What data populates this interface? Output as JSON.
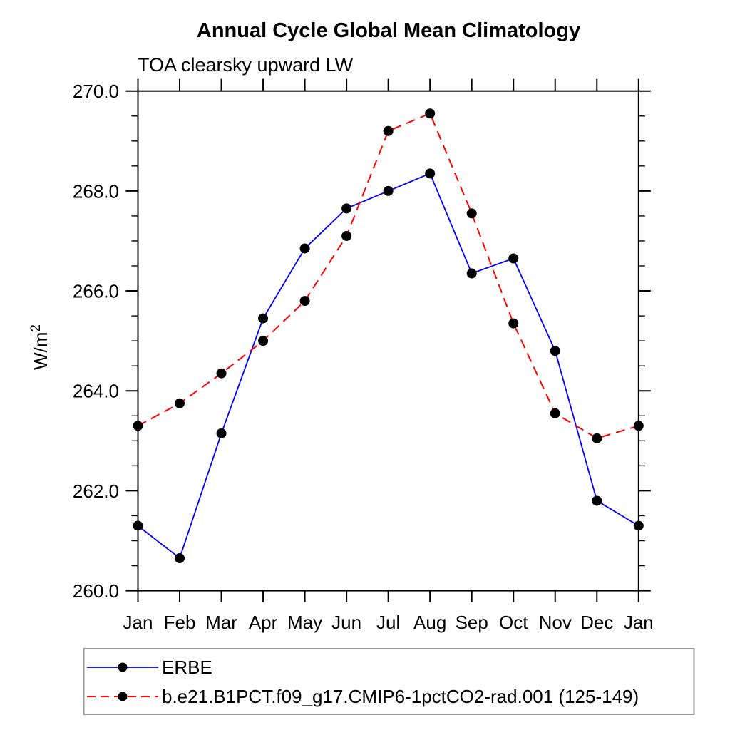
{
  "chart_data": {
    "type": "line",
    "title": "Annual Cycle Global Mean Climatology",
    "subtitle": "TOA clearsky upward LW",
    "xlabel": "",
    "ylabel": "W/m²",
    "ylabel_base": "W/m",
    "ylabel_exponent": "2",
    "x_tick_labels": [
      "Jan",
      "Feb",
      "Mar",
      "Apr",
      "May",
      "Jun",
      "Jul",
      "Aug",
      "Sep",
      "Oct",
      "Nov",
      "Dec",
      "Jan"
    ],
    "y_tick_labels": [
      "260.0",
      "262.0",
      "264.0",
      "266.0",
      "268.0",
      "270.0"
    ],
    "y_tick_values": [
      260.0,
      262.0,
      264.0,
      266.0,
      268.0,
      270.0
    ],
    "ylim": [
      260.0,
      270.0
    ],
    "y_major_step": 2.0,
    "y_minor_step": 0.5,
    "grid": false,
    "axis_color": "#000000",
    "marker_color": "#000000",
    "legend_position": "below-plot-boxed",
    "legend_border_color": "#9a9a9a",
    "series": [
      {
        "name": "ERBE",
        "color": "#0000ff",
        "line_style": "solid",
        "marker": "circle",
        "values": [
          261.3,
          260.65,
          263.15,
          265.45,
          266.85,
          267.65,
          268.0,
          268.35,
          266.35,
          266.65,
          264.8,
          261.8,
          261.3
        ]
      },
      {
        "name": "b.e21.B1PCT.f09_g17.CMIP6-1pctCO2-rad.001 (125-149)",
        "color": "#ff0000",
        "line_style": "dashed",
        "marker": "circle",
        "values": [
          263.3,
          263.75,
          264.35,
          265.0,
          265.8,
          267.1,
          269.2,
          269.55,
          267.55,
          265.35,
          263.55,
          263.05,
          263.3
        ]
      }
    ]
  }
}
